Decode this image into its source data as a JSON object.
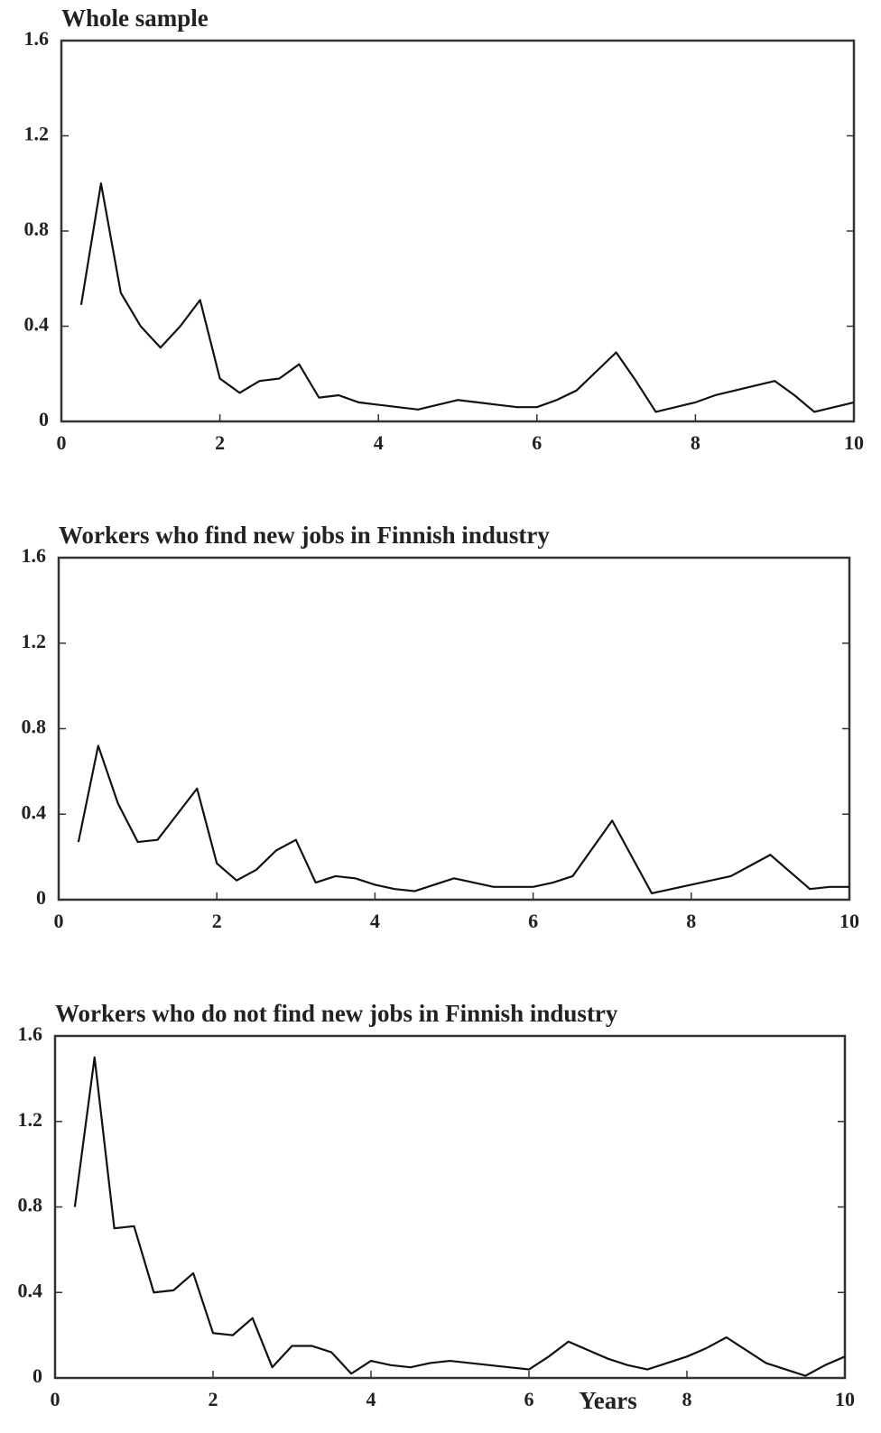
{
  "chart_data": [
    {
      "type": "line",
      "title": "Whole sample",
      "color": "#111111",
      "x": [
        0.25,
        0.5,
        0.75,
        1,
        1.25,
        1.5,
        1.75,
        2,
        2.25,
        2.5,
        2.75,
        3,
        3.25,
        3.5,
        3.75,
        4,
        4.25,
        4.5,
        4.75,
        5,
        5.25,
        5.5,
        5.75,
        6,
        6.25,
        6.5,
        6.75,
        7,
        7.25,
        7.5,
        7.75,
        8,
        8.25,
        8.5,
        8.75,
        9,
        9.25,
        9.5,
        9.75,
        10
      ],
      "values": [
        0.49,
        1.0,
        0.54,
        0.4,
        0.31,
        0.4,
        0.51,
        0.18,
        0.12,
        0.17,
        0.18,
        0.24,
        0.1,
        0.11,
        0.08,
        0.07,
        0.06,
        0.05,
        0.07,
        0.09,
        0.08,
        0.07,
        0.06,
        0.06,
        0.09,
        0.13,
        0.21,
        0.29,
        0.17,
        0.04,
        0.06,
        0.08,
        0.11,
        0.13,
        0.15,
        0.17,
        0.11,
        0.04,
        0.06,
        0.08
      ],
      "xlim": [
        0,
        10
      ],
      "ylim": [
        0,
        1.6
      ],
      "xticks": [
        0,
        2,
        4,
        6,
        8,
        10
      ],
      "yticks": [
        0,
        0.4,
        0.8,
        1.2,
        1.6
      ]
    },
    {
      "type": "line",
      "title": "Workers who find new jobs in Finnish industry",
      "color": "#111111",
      "x": [
        0.25,
        0.5,
        0.75,
        1,
        1.25,
        1.5,
        1.75,
        2,
        2.25,
        2.5,
        2.75,
        3,
        3.25,
        3.5,
        3.75,
        4,
        4.25,
        4.5,
        4.75,
        5,
        5.25,
        5.5,
        5.75,
        6,
        6.25,
        6.5,
        6.75,
        7,
        7.25,
        7.5,
        7.75,
        8,
        8.25,
        8.5,
        8.75,
        9,
        9.25,
        9.5,
        9.75,
        10
      ],
      "values": [
        0.27,
        0.72,
        0.45,
        0.27,
        0.28,
        0.4,
        0.52,
        0.17,
        0.09,
        0.14,
        0.23,
        0.28,
        0.08,
        0.11,
        0.1,
        0.07,
        0.05,
        0.04,
        0.07,
        0.1,
        0.08,
        0.06,
        0.06,
        0.06,
        0.08,
        0.11,
        0.24,
        0.37,
        0.2,
        0.03,
        0.05,
        0.07,
        0.09,
        0.11,
        0.16,
        0.21,
        0.13,
        0.05,
        0.06,
        0.06
      ],
      "xlim": [
        0,
        10
      ],
      "ylim": [
        0,
        1.6
      ],
      "xticks": [
        0,
        2,
        4,
        6,
        8,
        10
      ],
      "yticks": [
        0,
        0.4,
        0.8,
        1.2,
        1.6
      ]
    },
    {
      "type": "line",
      "title": "Workers who do not find new jobs in Finnish industry",
      "xlabel": "Years",
      "color": "#111111",
      "x": [
        0.25,
        0.5,
        0.75,
        1,
        1.25,
        1.5,
        1.75,
        2,
        2.25,
        2.5,
        2.75,
        3,
        3.25,
        3.5,
        3.75,
        4,
        4.25,
        4.5,
        4.75,
        5,
        5.25,
        5.5,
        5.75,
        6,
        6.25,
        6.5,
        6.75,
        7,
        7.25,
        7.5,
        7.75,
        8,
        8.25,
        8.5,
        8.75,
        9,
        9.25,
        9.5,
        9.75,
        10
      ],
      "values": [
        0.8,
        1.5,
        0.7,
        0.71,
        0.4,
        0.41,
        0.49,
        0.21,
        0.2,
        0.28,
        0.05,
        0.15,
        0.15,
        0.12,
        0.02,
        0.08,
        0.06,
        0.05,
        0.07,
        0.08,
        0.07,
        0.06,
        0.05,
        0.04,
        0.1,
        0.17,
        0.13,
        0.09,
        0.06,
        0.04,
        0.07,
        0.1,
        0.14,
        0.19,
        0.13,
        0.07,
        0.04,
        0.01,
        0.06,
        0.1
      ],
      "xlim": [
        0,
        10
      ],
      "ylim": [
        0,
        1.6
      ],
      "xticks": [
        0,
        2,
        4,
        6,
        8,
        10
      ],
      "yticks": [
        0,
        0.4,
        0.8,
        1.2,
        1.6
      ]
    }
  ]
}
